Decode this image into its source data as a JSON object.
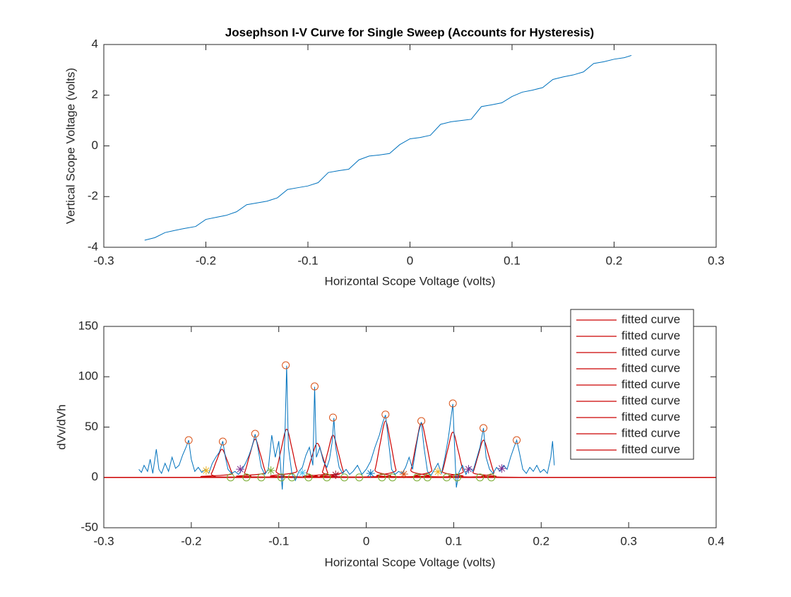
{
  "chart_data": [
    {
      "type": "line",
      "title": "Josephson I-V Curve for Single Sweep (Accounts for Hysteresis)",
      "xlabel": "Horizontal Scope Voltage (volts)",
      "ylabel": "Vertical Scope Voltage (volts)",
      "xlim": [
        -0.3,
        0.3
      ],
      "xticks": [
        -0.3,
        -0.2,
        -0.1,
        0,
        0.1,
        0.2,
        0.3
      ],
      "ylim": [
        -4,
        4
      ],
      "yticks": [
        -4,
        -2,
        0,
        2,
        4
      ],
      "line": {
        "color": "#0072bd",
        "x": [
          -0.26,
          -0.25,
          -0.24,
          -0.23,
          -0.22,
          -0.21,
          -0.2,
          -0.19,
          -0.18,
          -0.17,
          -0.16,
          -0.15,
          -0.14,
          -0.13,
          -0.12,
          -0.11,
          -0.1,
          -0.09,
          -0.08,
          -0.07,
          -0.06,
          -0.05,
          -0.04,
          -0.03,
          -0.02,
          -0.01,
          0,
          0.01,
          0.02,
          0.03,
          0.04,
          0.05,
          0.06,
          0.07,
          0.08,
          0.09,
          0.1,
          0.11,
          0.12,
          0.13,
          0.14,
          0.15,
          0.16,
          0.17,
          0.18,
          0.19,
          0.2,
          0.21,
          0.217
        ],
        "values": [
          -3.72,
          -3.62,
          -3.42,
          -3.33,
          -3.25,
          -3.18,
          -2.9,
          -2.82,
          -2.74,
          -2.6,
          -2.32,
          -2.25,
          -2.18,
          -2.05,
          -1.72,
          -1.65,
          -1.58,
          -1.45,
          -1.05,
          -0.98,
          -0.92,
          -0.55,
          -0.4,
          -0.36,
          -0.3,
          0.05,
          0.28,
          0.33,
          0.42,
          0.85,
          0.95,
          1.0,
          1.05,
          1.55,
          1.62,
          1.7,
          1.95,
          2.12,
          2.2,
          2.3,
          2.62,
          2.72,
          2.8,
          2.92,
          3.25,
          3.32,
          3.42,
          3.48,
          3.57
        ]
      }
    },
    {
      "type": "line",
      "xlabel": "Horizontal Scope Voltage (volts)",
      "ylabel": "dVv/dVh",
      "xlim": [
        -0.3,
        0.4
      ],
      "xticks": [
        -0.3,
        -0.2,
        -0.1,
        0,
        0.1,
        0.2,
        0.3,
        0.4
      ],
      "ylim": [
        -50,
        150
      ],
      "yticks": [
        -50,
        0,
        50,
        100,
        150
      ],
      "legend": "northeast",
      "line": {
        "color": "#0072bd",
        "x": [
          -0.26,
          -0.257,
          -0.254,
          -0.25,
          -0.247,
          -0.244,
          -0.24,
          -0.237,
          -0.234,
          -0.23,
          -0.226,
          -0.222,
          -0.218,
          -0.214,
          -0.21,
          -0.206,
          -0.203,
          -0.2,
          -0.196,
          -0.192,
          -0.188,
          -0.184,
          -0.18,
          -0.176,
          -0.172,
          -0.168,
          -0.164,
          -0.161,
          -0.158,
          -0.154,
          -0.15,
          -0.146,
          -0.142,
          -0.138,
          -0.134,
          -0.13,
          -0.127,
          -0.124,
          -0.12,
          -0.116,
          -0.112,
          -0.108,
          -0.104,
          -0.1,
          -0.096,
          -0.093,
          -0.091,
          -0.089,
          -0.085,
          -0.081,
          -0.077,
          -0.073,
          -0.069,
          -0.065,
          -0.061,
          -0.059,
          -0.057,
          -0.053,
          -0.049,
          -0.045,
          -0.042,
          -0.039,
          -0.037,
          -0.035,
          -0.031,
          -0.027,
          -0.023,
          -0.019,
          -0.015,
          -0.01,
          -0.005,
          0,
          0.005,
          0.01,
          0.015,
          0.019,
          0.022,
          0.025,
          0.029,
          0.033,
          0.037,
          0.041,
          0.045,
          0.049,
          0.053,
          0.057,
          0.06,
          0.063,
          0.066,
          0.07,
          0.074,
          0.078,
          0.082,
          0.086,
          0.09,
          0.094,
          0.097,
          0.099,
          0.101,
          0.103,
          0.106,
          0.11,
          0.114,
          0.118,
          0.122,
          0.126,
          0.13,
          0.134,
          0.137,
          0.141,
          0.145,
          0.149,
          0.153,
          0.157,
          0.161,
          0.165,
          0.169,
          0.172,
          0.175,
          0.179,
          0.183,
          0.187,
          0.191,
          0.195,
          0.199,
          0.203,
          0.207,
          0.211,
          0.213,
          0.215
        ],
        "values": [
          8,
          5,
          12,
          6,
          18,
          4,
          28,
          8,
          4,
          14,
          6,
          20,
          9,
          12,
          22,
          30,
          37,
          18,
          6,
          10,
          5,
          8,
          4,
          14,
          20,
          25,
          36,
          20,
          8,
          4,
          6,
          3,
          8,
          14,
          22,
          32,
          43,
          30,
          10,
          3,
          8,
          42,
          20,
          36,
          -12,
          40,
          111,
          30,
          4,
          -3,
          6,
          10,
          22,
          30,
          12,
          90,
          20,
          30,
          16,
          10,
          18,
          35,
          59,
          30,
          10,
          4,
          8,
          3,
          6,
          12,
          3,
          8,
          16,
          30,
          42,
          55,
          62,
          40,
          8,
          3,
          6,
          4,
          10,
          20,
          8,
          30,
          45,
          55,
          30,
          6,
          2,
          8,
          14,
          4,
          20,
          40,
          60,
          73,
          30,
          -10,
          5,
          12,
          3,
          10,
          6,
          18,
          30,
          49,
          20,
          8,
          4,
          10,
          6,
          12,
          8,
          20,
          30,
          37,
          25,
          8,
          4,
          10,
          6,
          12,
          5,
          8,
          4,
          20,
          36,
          12
        ]
      },
      "peaks": {
        "color": "#d95319",
        "x": [
          -0.203,
          -0.164,
          -0.127,
          -0.092,
          -0.059,
          -0.038,
          0.022,
          0.063,
          0.099,
          0.134,
          0.172
        ],
        "values": [
          37,
          35.6,
          43.3,
          111.4,
          90.4,
          59.5,
          62.5,
          56,
          73.5,
          49,
          37
        ]
      },
      "stars": {
        "x": [
          -0.183,
          -0.144,
          -0.109,
          -0.073,
          -0.035,
          0.005,
          0.043,
          0.082,
          0.117,
          0.155
        ],
        "values": [
          6.8,
          8.2,
          6.8,
          4.6,
          2.6,
          4,
          3.3,
          5.6,
          8.2,
          8.9
        ],
        "colors": [
          "#edb120",
          "#7e2f8e",
          "#77ac30",
          "#4dbeee",
          "#a2142f",
          "#0072bd",
          "#d95319",
          "#edb120",
          "#7e2f8e",
          "#7e2f8e"
        ]
      },
      "zeros": {
        "color": "#77ac30",
        "x": [
          -0.155,
          -0.137,
          -0.12,
          -0.097,
          -0.085,
          -0.066,
          -0.045,
          -0.025,
          -0.008,
          0.018,
          0.03,
          0.058,
          0.07,
          0.092,
          0.104,
          0.13,
          0.143
        ],
        "values": [
          0,
          0,
          0,
          0,
          0,
          0,
          0,
          0,
          0,
          0,
          0,
          0,
          0,
          0,
          0,
          0,
          0
        ]
      },
      "fits": [
        {
          "name": "fitted curve",
          "color": "#cc0000",
          "x": [
            -0.3,
            -0.183,
            -0.177,
            -0.171,
            -0.165,
            -0.159,
            -0.153,
            -0.147,
            0.4
          ],
          "values": [
            0,
            0.3,
            3.8,
            17,
            28,
            17,
            3.8,
            0.3,
            0
          ]
        },
        {
          "name": "fitted curve",
          "color": "#cc0000",
          "x": [
            -0.3,
            -0.145,
            -0.139,
            -0.133,
            -0.127,
            -0.121,
            -0.115,
            -0.109,
            0.4
          ],
          "values": [
            0,
            0.4,
            5.1,
            23,
            38,
            23,
            5.1,
            0.4,
            0
          ]
        },
        {
          "name": "fitted curve",
          "color": "#cc0000",
          "x": [
            -0.3,
            -0.109,
            -0.103,
            -0.097,
            -0.091,
            -0.085,
            -0.079,
            -0.073,
            0.4
          ],
          "values": [
            0,
            0.5,
            6.5,
            29,
            48,
            29,
            6.5,
            0.5,
            0
          ]
        },
        {
          "name": "fitted curve",
          "color": "#cc0000",
          "x": [
            -0.3,
            -0.074,
            -0.068,
            -0.062,
            -0.056,
            -0.05,
            -0.044,
            -0.038,
            0.4
          ],
          "values": [
            0,
            0.4,
            4.6,
            21,
            34,
            21,
            4.6,
            0.4,
            0
          ]
        },
        {
          "name": "fitted curve",
          "color": "#cc0000",
          "x": [
            -0.3,
            -0.056,
            -0.05,
            -0.044,
            -0.038,
            -0.032,
            -0.026,
            -0.02,
            0.4
          ],
          "values": [
            0,
            0.5,
            5.7,
            25,
            42,
            25,
            5.7,
            0.5,
            0
          ]
        },
        {
          "name": "fitted curve",
          "color": "#cc0000",
          "x": [
            -0.3,
            0.004,
            0.01,
            0.016,
            0.022,
            0.028,
            0.034,
            0.04,
            0.4
          ],
          "values": [
            0,
            0.6,
            7.6,
            34,
            56,
            34,
            7.6,
            0.6,
            0
          ]
        },
        {
          "name": "fitted curve",
          "color": "#cc0000",
          "x": [
            -0.3,
            0.045,
            0.051,
            0.057,
            0.063,
            0.069,
            0.075,
            0.081,
            0.4
          ],
          "values": [
            0,
            0.6,
            7.3,
            33,
            54,
            33,
            7.3,
            0.6,
            0
          ]
        },
        {
          "name": "fitted curve",
          "color": "#cc0000",
          "x": [
            -0.3,
            0.081,
            0.087,
            0.093,
            0.099,
            0.105,
            0.111,
            0.117,
            0.4
          ],
          "values": [
            0,
            0.5,
            6.1,
            27,
            45,
            27,
            6.1,
            0.5,
            0
          ]
        },
        {
          "name": "fitted curve",
          "color": "#cc0000",
          "x": [
            -0.3,
            0.116,
            0.122,
            0.128,
            0.134,
            0.14,
            0.146,
            0.152,
            0.4
          ],
          "values": [
            0,
            0.4,
            5,
            22,
            37,
            22,
            5,
            0.4,
            0
          ]
        }
      ]
    }
  ]
}
